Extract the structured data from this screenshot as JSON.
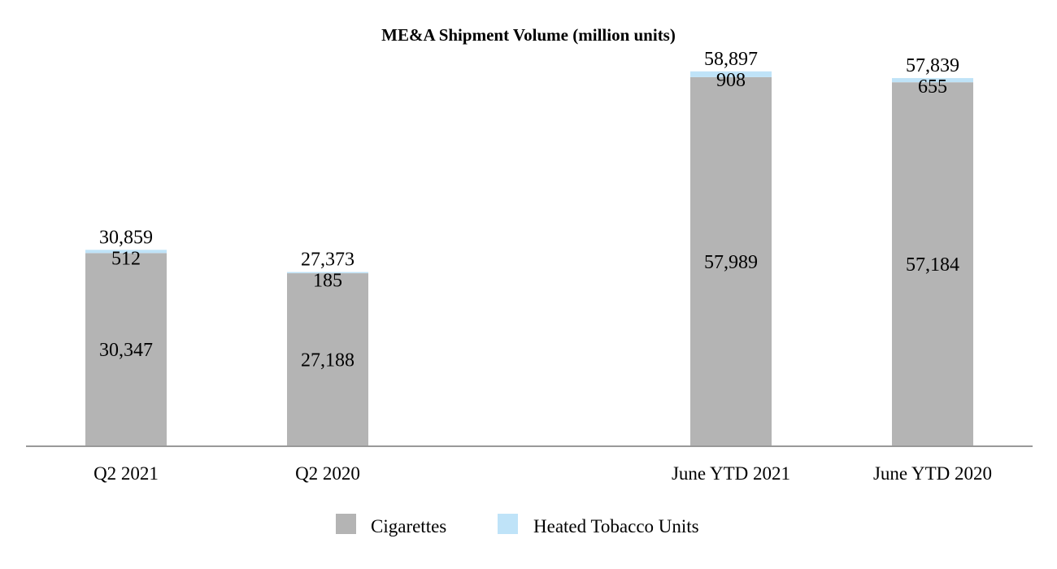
{
  "chart_data": {
    "type": "bar",
    "stacked": true,
    "title": "ME&A Shipment Volume (million units)",
    "xlabel": "",
    "ylabel": "",
    "ylim": [
      0,
      65000
    ],
    "grid": false,
    "legend_position": "bottom-center",
    "categories": [
      "Q2 2021",
      "Q2 2020",
      "June YTD 2021",
      "June YTD 2020"
    ],
    "category_slots": [
      0,
      1,
      3,
      4
    ],
    "series": [
      {
        "name": "Cigarettes",
        "color": "#b4b4b4",
        "values": [
          30347,
          27188,
          57989,
          57184
        ],
        "labels": [
          "30,347",
          "27,188",
          "57,989",
          "57,184"
        ]
      },
      {
        "name": "Heated Tobacco Units",
        "color": "#bfe3f8",
        "values": [
          512,
          185,
          908,
          655
        ],
        "labels": [
          "512",
          "185",
          "908",
          "655"
        ]
      }
    ],
    "totals": [
      30859,
      27373,
      58897,
      57839
    ],
    "total_labels": [
      "30,859",
      "27,373",
      "58,897",
      "57,839"
    ]
  }
}
